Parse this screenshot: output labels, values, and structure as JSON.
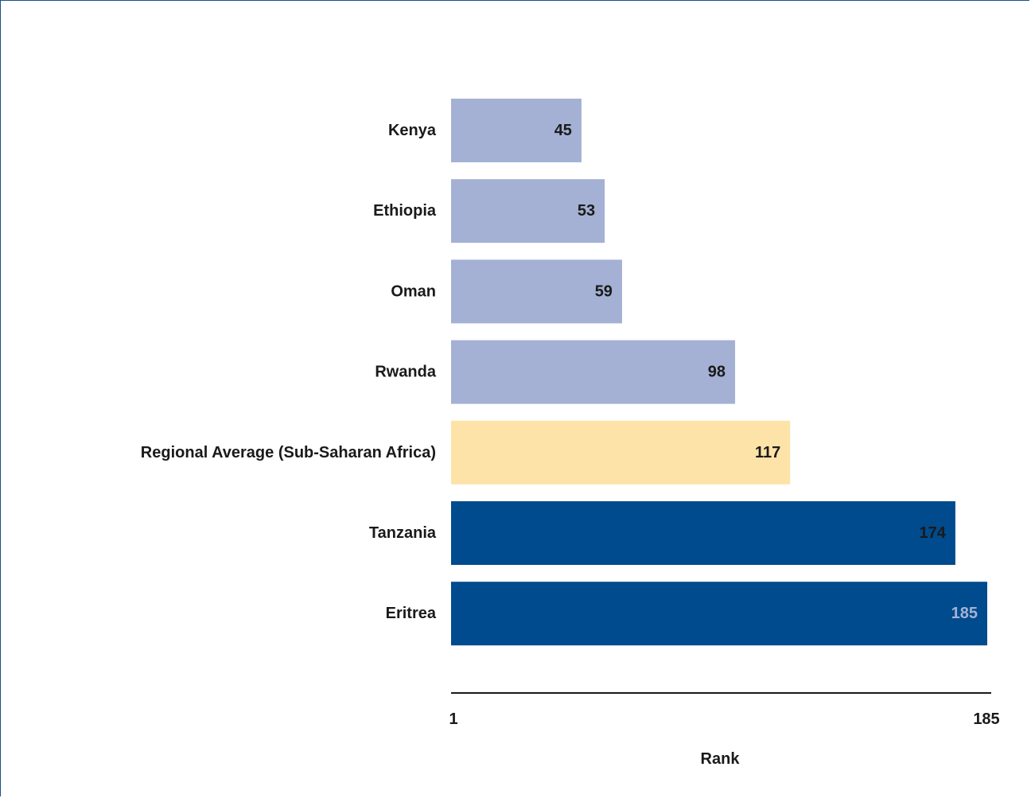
{
  "chart_data": {
    "type": "bar",
    "orientation": "horizontal",
    "categories": [
      "Kenya",
      "Ethiopia",
      "Oman",
      "Rwanda",
      "Regional Average (Sub-Saharan Africa)",
      "Tanzania",
      "Eritrea"
    ],
    "values": [
      45,
      53,
      59,
      98,
      117,
      174,
      185
    ],
    "value_labels": [
      "45",
      "53",
      "59",
      "98",
      "117",
      "174",
      "185"
    ],
    "bar_colors": [
      "#a4b1d4",
      "#a4b1d4",
      "#a4b1d4",
      "#a4b1d4",
      "#fde3a8",
      "#004b8d",
      "#004b8d"
    ],
    "value_label_colors": [
      "#1a1a1a",
      "#1a1a1a",
      "#1a1a1a",
      "#1a1a1a",
      "#1a1a1a",
      "#1a1a1a",
      "#a4b1d4"
    ],
    "xlim": [
      1,
      185
    ],
    "x_ticks": [
      "1",
      "185"
    ],
    "xlabel": "Rank",
    "ylabel": "",
    "title": "",
    "grid": false,
    "legend": "none"
  }
}
